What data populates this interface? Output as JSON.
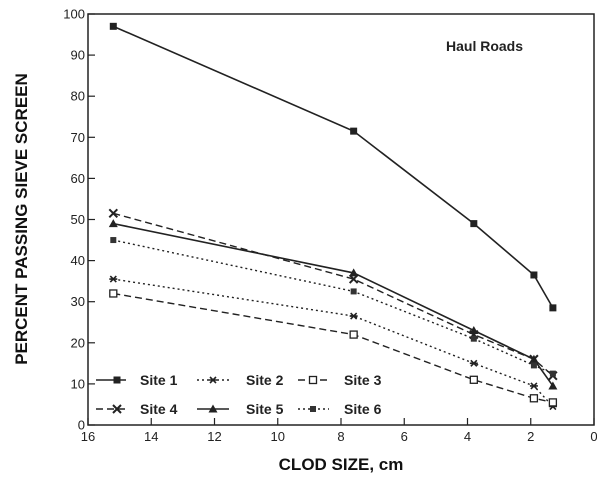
{
  "chart_data": {
    "type": "line",
    "xlabel": "CLOD SIZE, cm",
    "ylabel": "PERCENT PASSING SIEVE SCREEN",
    "annotation": "Haul Roads",
    "xlim": [
      16,
      0
    ],
    "ylim": [
      0,
      100
    ],
    "x_reversed": true,
    "xticks": [
      16,
      14,
      12,
      10,
      8,
      6,
      4,
      2,
      0
    ],
    "yticks": [
      0,
      10,
      20,
      30,
      40,
      50,
      60,
      70,
      80,
      90,
      100
    ],
    "x": [
      15.2,
      7.6,
      3.8,
      1.9,
      1.3
    ],
    "grid": false,
    "legend_position": "bottom-left",
    "series": [
      {
        "name": "Site 1",
        "values": [
          97,
          71.5,
          49,
          36.5,
          28.5
        ],
        "dash": "solid",
        "marker": "filled-square"
      },
      {
        "name": "Site 2",
        "values": [
          35.5,
          26.5,
          15,
          9.5,
          4.5
        ],
        "dash": "dotted",
        "marker": "asterisk"
      },
      {
        "name": "Site 3",
        "values": [
          32,
          22,
          11,
          6.5,
          5.5
        ],
        "dash": "dashed",
        "marker": "open-square"
      },
      {
        "name": "Site 4",
        "values": [
          51.5,
          35.5,
          22,
          16,
          12
        ],
        "dash": "dashed",
        "marker": "cross"
      },
      {
        "name": "Site 5",
        "values": [
          49,
          37,
          23,
          16,
          9.5
        ],
        "dash": "solid",
        "marker": "triangle"
      },
      {
        "name": "Site 6",
        "values": [
          45,
          32.5,
          21,
          14.5,
          12.5
        ],
        "dash": "dotted",
        "marker": "filled-square-small"
      }
    ]
  }
}
